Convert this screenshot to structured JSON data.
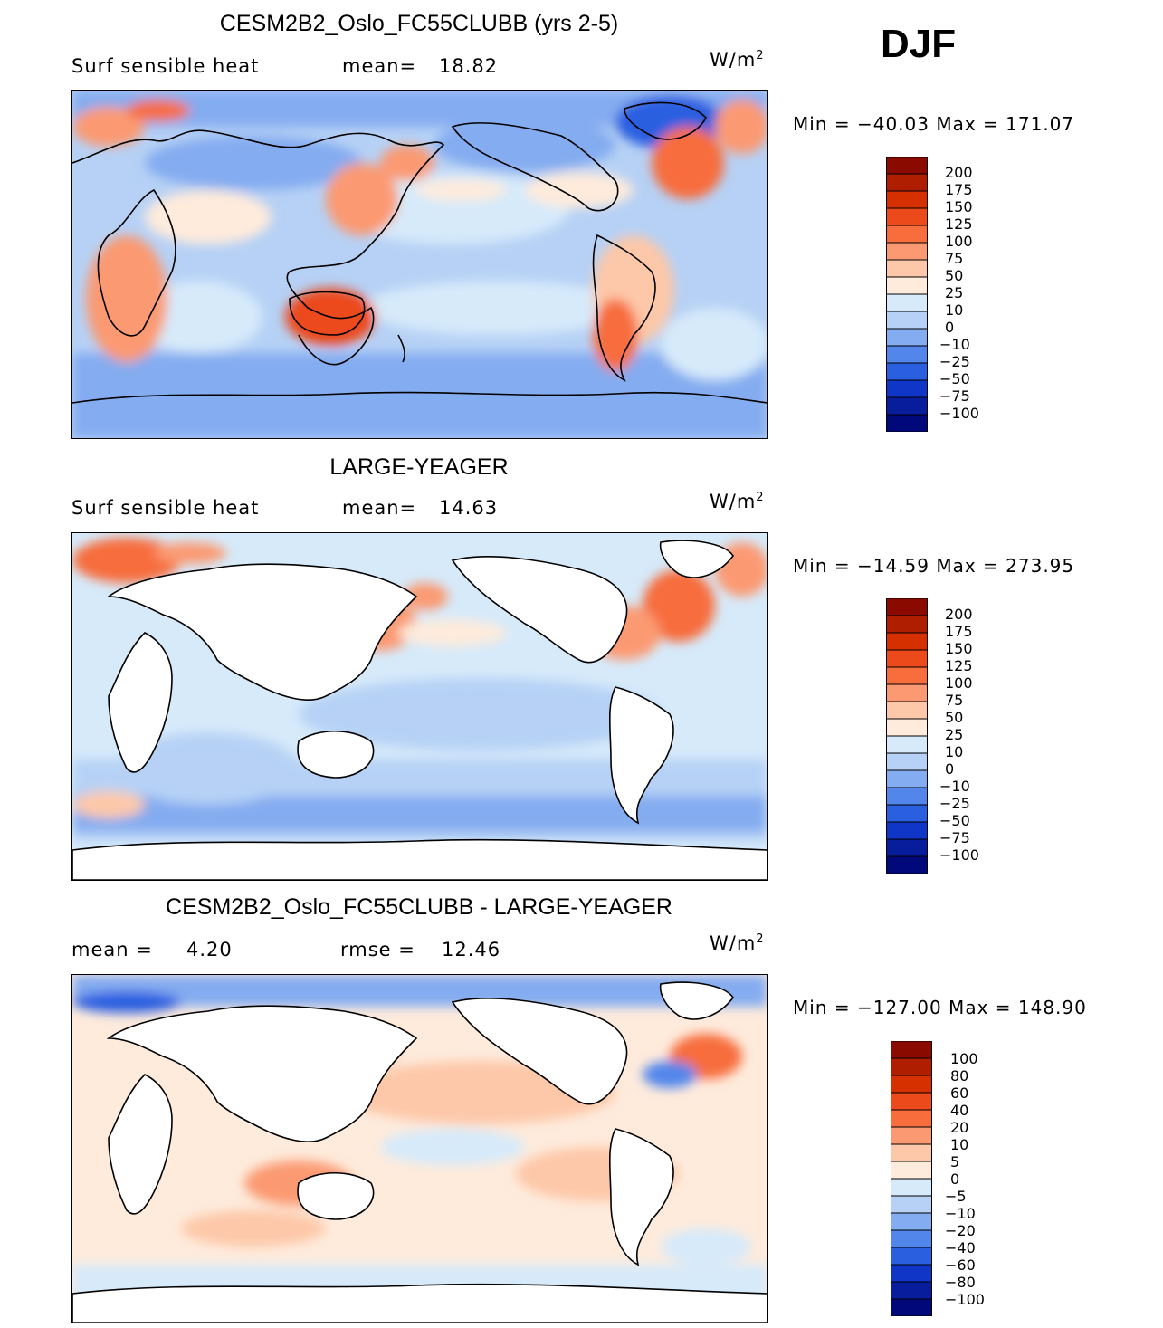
{
  "header": {
    "season": "DJF"
  },
  "panels": [
    {
      "title": "CESM2B2_Oslo_FC55CLUBB (yrs 2-5)",
      "left_label": "Surf sensible heat",
      "stat_label": "mean=",
      "stat_value": "18.82",
      "units_base": "W/m",
      "units_exp": "2",
      "minmax": "Min = −40.03 Max = 171.07",
      "colorbar": {
        "levels": [
          "200",
          "175",
          "150",
          "125",
          "100",
          "75",
          "50",
          "25",
          "10",
          "0",
          "−10",
          "−25",
          "−50",
          "−75",
          "−100"
        ],
        "colors": [
          "#8b0a00",
          "#b01e00",
          "#d62f00",
          "#ec4a1a",
          "#f76d3c",
          "#fb9a72",
          "#fdc8a9",
          "#feebdc",
          "#d6eafa",
          "#b6d1f5",
          "#84acf0",
          "#5386eb",
          "#2a5fe0",
          "#0f36c6",
          "#081d9b",
          "#00087a"
        ]
      }
    },
    {
      "title": "LARGE-YEAGER",
      "left_label": "Surf sensible heat",
      "stat_label": "mean=",
      "stat_value": "14.63",
      "units_base": "W/m",
      "units_exp": "2",
      "minmax": "Min = −14.59 Max = 273.95",
      "colorbar": {
        "levels": [
          "200",
          "175",
          "150",
          "125",
          "100",
          "75",
          "50",
          "25",
          "10",
          "0",
          "−10",
          "−25",
          "−50",
          "−75",
          "−100"
        ],
        "colors": [
          "#8b0a00",
          "#b01e00",
          "#d62f00",
          "#ec4a1a",
          "#f76d3c",
          "#fb9a72",
          "#fdc8a9",
          "#feebdc",
          "#d6eafa",
          "#b6d1f5",
          "#84acf0",
          "#5386eb",
          "#2a5fe0",
          "#0f36c6",
          "#081d9b",
          "#00087a"
        ]
      }
    },
    {
      "title": "CESM2B2_Oslo_FC55CLUBB - LARGE-YEAGER",
      "left_label": "mean =",
      "left_value": "4.20",
      "stat_label": "rmse =",
      "stat_value": "12.46",
      "units_base": "W/m",
      "units_exp": "2",
      "minmax": "Min = −127.00 Max = 148.90",
      "colorbar": {
        "levels": [
          "100",
          "80",
          "60",
          "40",
          "20",
          "10",
          "5",
          "0",
          "−5",
          "−10",
          "−20",
          "−40",
          "−60",
          "−80",
          "−100"
        ],
        "colors": [
          "#8b0a00",
          "#b01e00",
          "#d62f00",
          "#ec4a1a",
          "#f76d3c",
          "#fb9a72",
          "#fdc8a9",
          "#feebdc",
          "#d6eafa",
          "#b6d1f5",
          "#84acf0",
          "#5386eb",
          "#2a5fe0",
          "#0f36c6",
          "#081d9b",
          "#00087a"
        ]
      }
    }
  ]
}
